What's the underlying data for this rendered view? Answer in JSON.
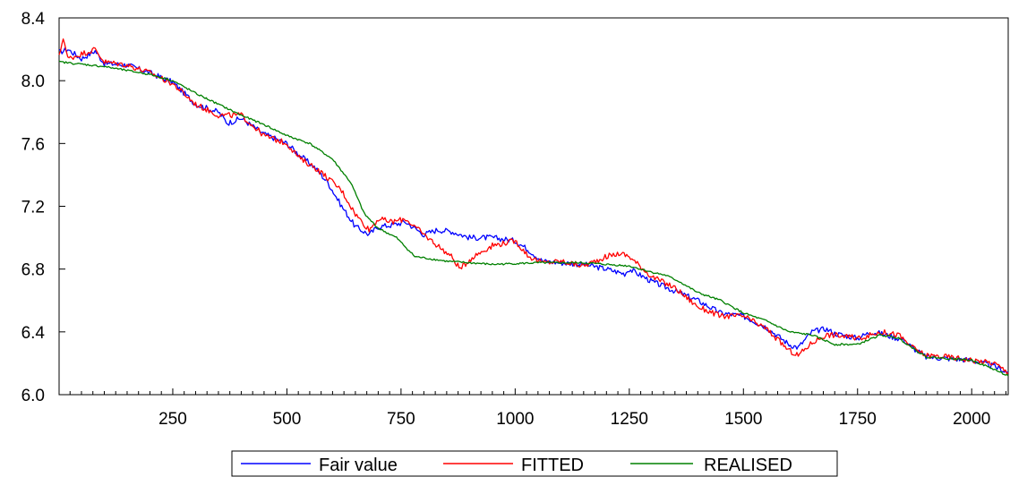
{
  "chart_data": {
    "type": "line",
    "title": "",
    "xlabel": "",
    "ylabel": "",
    "xlim": [
      1,
      2080
    ],
    "ylim": [
      6.0,
      8.4
    ],
    "x_ticks": [
      250,
      500,
      750,
      1000,
      1250,
      1500,
      1750,
      2000
    ],
    "x_tick_labels": [
      "250",
      "500",
      "750",
      "1000",
      "1250",
      "1500",
      "1750",
      "2000"
    ],
    "y_ticks": [
      6.0,
      6.4,
      6.8,
      7.2,
      7.6,
      8.0,
      8.4
    ],
    "y_tick_labels": [
      "6.0",
      "6.4",
      "6.8",
      "7.2",
      "7.6",
      "8.0",
      "8.4"
    ],
    "grid": false,
    "legend_position": "bottom-center",
    "series": [
      {
        "name": "Fair value",
        "color": "#0000ff",
        "points": [
          [
            1,
            8.18
          ],
          [
            20,
            8.2
          ],
          [
            50,
            8.14
          ],
          [
            80,
            8.19
          ],
          [
            100,
            8.11
          ],
          [
            150,
            8.1
          ],
          [
            200,
            8.05
          ],
          [
            250,
            7.99
          ],
          [
            300,
            7.85
          ],
          [
            350,
            7.8
          ],
          [
            370,
            7.73
          ],
          [
            400,
            7.76
          ],
          [
            450,
            7.66
          ],
          [
            500,
            7.6
          ],
          [
            530,
            7.52
          ],
          [
            560,
            7.45
          ],
          [
            590,
            7.35
          ],
          [
            620,
            7.2
          ],
          [
            650,
            7.07
          ],
          [
            680,
            7.02
          ],
          [
            700,
            7.07
          ],
          [
            730,
            7.08
          ],
          [
            760,
            7.1
          ],
          [
            800,
            7.02
          ],
          [
            830,
            7.05
          ],
          [
            860,
            7.04
          ],
          [
            900,
            7.0
          ],
          [
            950,
            7.0
          ],
          [
            1000,
            6.98
          ],
          [
            1030,
            6.92
          ],
          [
            1060,
            6.85
          ],
          [
            1100,
            6.84
          ],
          [
            1150,
            6.83
          ],
          [
            1200,
            6.8
          ],
          [
            1240,
            6.77
          ],
          [
            1250,
            6.8
          ],
          [
            1300,
            6.72
          ],
          [
            1350,
            6.66
          ],
          [
            1400,
            6.6
          ],
          [
            1450,
            6.52
          ],
          [
            1500,
            6.5
          ],
          [
            1550,
            6.43
          ],
          [
            1600,
            6.32
          ],
          [
            1620,
            6.3
          ],
          [
            1650,
            6.4
          ],
          [
            1680,
            6.42
          ],
          [
            1700,
            6.39
          ],
          [
            1750,
            6.36
          ],
          [
            1780,
            6.4
          ],
          [
            1800,
            6.39
          ],
          [
            1850,
            6.35
          ],
          [
            1870,
            6.3
          ],
          [
            1900,
            6.24
          ],
          [
            1950,
            6.23
          ],
          [
            2000,
            6.22
          ],
          [
            2050,
            6.18
          ],
          [
            2080,
            6.14
          ]
        ]
      },
      {
        "name": "FITTED",
        "color": "#ff0000",
        "points": [
          [
            1,
            8.15
          ],
          [
            10,
            8.28
          ],
          [
            20,
            8.14
          ],
          [
            50,
            8.17
          ],
          [
            80,
            8.2
          ],
          [
            100,
            8.12
          ],
          [
            150,
            8.1
          ],
          [
            200,
            8.05
          ],
          [
            250,
            7.98
          ],
          [
            300,
            7.85
          ],
          [
            350,
            7.78
          ],
          [
            400,
            7.78
          ],
          [
            450,
            7.65
          ],
          [
            500,
            7.6
          ],
          [
            530,
            7.5
          ],
          [
            560,
            7.45
          ],
          [
            590,
            7.38
          ],
          [
            620,
            7.3
          ],
          [
            650,
            7.15
          ],
          [
            680,
            7.05
          ],
          [
            700,
            7.12
          ],
          [
            730,
            7.1
          ],
          [
            760,
            7.12
          ],
          [
            800,
            7.02
          ],
          [
            830,
            6.95
          ],
          [
            860,
            6.88
          ],
          [
            880,
            6.8
          ],
          [
            900,
            6.86
          ],
          [
            920,
            6.9
          ],
          [
            950,
            6.95
          ],
          [
            1000,
            6.98
          ],
          [
            1030,
            6.88
          ],
          [
            1060,
            6.84
          ],
          [
            1100,
            6.85
          ],
          [
            1150,
            6.82
          ],
          [
            1200,
            6.88
          ],
          [
            1230,
            6.9
          ],
          [
            1250,
            6.88
          ],
          [
            1300,
            6.75
          ],
          [
            1350,
            6.68
          ],
          [
            1400,
            6.56
          ],
          [
            1450,
            6.5
          ],
          [
            1500,
            6.5
          ],
          [
            1550,
            6.42
          ],
          [
            1600,
            6.28
          ],
          [
            1620,
            6.25
          ],
          [
            1650,
            6.33
          ],
          [
            1680,
            6.38
          ],
          [
            1700,
            6.38
          ],
          [
            1750,
            6.36
          ],
          [
            1780,
            6.38
          ],
          [
            1800,
            6.4
          ],
          [
            1840,
            6.38
          ],
          [
            1870,
            6.3
          ],
          [
            1900,
            6.25
          ],
          [
            1950,
            6.24
          ],
          [
            2000,
            6.22
          ],
          [
            2050,
            6.2
          ],
          [
            2080,
            6.14
          ]
        ]
      },
      {
        "name": "REALISED",
        "color": "#008000",
        "points": [
          [
            1,
            8.12
          ],
          [
            100,
            8.09
          ],
          [
            200,
            8.04
          ],
          [
            250,
            8.0
          ],
          [
            300,
            7.92
          ],
          [
            350,
            7.85
          ],
          [
            400,
            7.78
          ],
          [
            450,
            7.72
          ],
          [
            500,
            7.65
          ],
          [
            550,
            7.6
          ],
          [
            600,
            7.5
          ],
          [
            640,
            7.35
          ],
          [
            670,
            7.15
          ],
          [
            700,
            7.06
          ],
          [
            740,
            7.0
          ],
          [
            780,
            6.88
          ],
          [
            850,
            6.85
          ],
          [
            950,
            6.83
          ],
          [
            1050,
            6.84
          ],
          [
            1150,
            6.84
          ],
          [
            1250,
            6.82
          ],
          [
            1300,
            6.78
          ],
          [
            1330,
            6.76
          ],
          [
            1360,
            6.72
          ],
          [
            1400,
            6.65
          ],
          [
            1450,
            6.6
          ],
          [
            1500,
            6.52
          ],
          [
            1550,
            6.47
          ],
          [
            1600,
            6.4
          ],
          [
            1650,
            6.38
          ],
          [
            1700,
            6.32
          ],
          [
            1750,
            6.32
          ],
          [
            1800,
            6.38
          ],
          [
            1840,
            6.36
          ],
          [
            1870,
            6.3
          ],
          [
            1900,
            6.24
          ],
          [
            1950,
            6.23
          ],
          [
            2000,
            6.22
          ],
          [
            2050,
            6.16
          ],
          [
            2080,
            6.12
          ]
        ]
      }
    ]
  }
}
